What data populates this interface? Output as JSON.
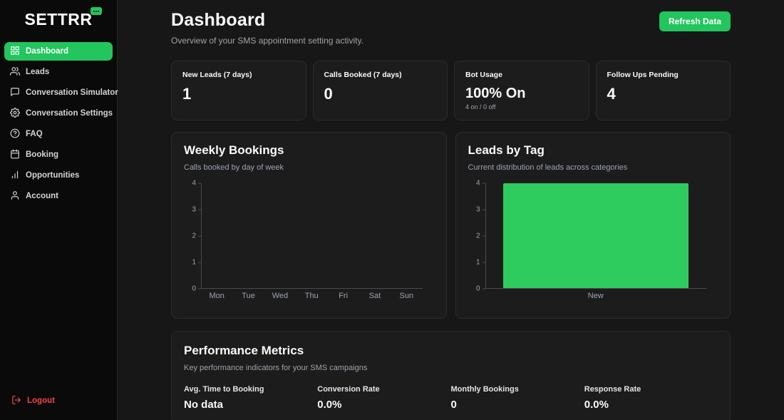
{
  "sidebar": {
    "logo": "SETTRR",
    "items": [
      {
        "label": "Dashboard",
        "icon": "grid-icon",
        "active": true
      },
      {
        "label": "Leads",
        "icon": "users-icon",
        "active": false
      },
      {
        "label": "Conversation Simulator",
        "icon": "chat-icon",
        "active": false
      },
      {
        "label": "Conversation Settings",
        "icon": "gear-icon",
        "active": false
      },
      {
        "label": "FAQ",
        "icon": "help-icon",
        "active": false
      },
      {
        "label": "Booking",
        "icon": "calendar-icon",
        "active": false
      },
      {
        "label": "Opportunities",
        "icon": "bar-chart-icon",
        "active": false
      },
      {
        "label": "Account",
        "icon": "user-icon",
        "active": false
      }
    ],
    "logout_label": "Logout"
  },
  "header": {
    "title": "Dashboard",
    "subtitle": "Overview of your SMS appointment setting activity.",
    "refresh_button": "Refresh Data"
  },
  "stats": [
    {
      "label": "New Leads (7 days)",
      "value": "1",
      "sub": ""
    },
    {
      "label": "Calls Booked (7 days)",
      "value": "0",
      "sub": ""
    },
    {
      "label": "Bot Usage",
      "value": "100% On",
      "sub": "4 on / 0 off"
    },
    {
      "label": "Follow Ups Pending",
      "value": "4",
      "sub": ""
    }
  ],
  "chart_data": [
    {
      "type": "bar",
      "title": "Weekly Bookings",
      "subtitle": "Calls booked by day of week",
      "categories": [
        "Mon",
        "Tue",
        "Wed",
        "Thu",
        "Fri",
        "Sat",
        "Sun"
      ],
      "values": [
        0,
        0,
        0,
        0,
        0,
        0,
        0
      ],
      "ylim": [
        0,
        4
      ],
      "yticks": [
        0,
        1,
        2,
        3,
        4
      ],
      "bar_color": "#2ecc5e",
      "grid": false,
      "legend": "none"
    },
    {
      "type": "bar",
      "title": "Leads by Tag",
      "subtitle": "Current distribution of leads across categories",
      "categories": [
        "New"
      ],
      "values": [
        4
      ],
      "ylim": [
        0,
        4
      ],
      "yticks": [
        0,
        1,
        2,
        3,
        4
      ],
      "bar_color": "#2ecc5e",
      "grid": false,
      "legend": "none"
    }
  ],
  "performance": {
    "title": "Performance Metrics",
    "subtitle": "Key performance indicators for your SMS campaigns",
    "metrics": [
      {
        "label": "Avg. Time to Booking",
        "value": "No data"
      },
      {
        "label": "Conversion Rate",
        "value": "0.0%"
      },
      {
        "label": "Monthly Bookings",
        "value": "0"
      },
      {
        "label": "Response Rate",
        "value": "0.0%"
      }
    ]
  },
  "colors": {
    "accent": "#22c55e",
    "bar_green": "#2ecc5e",
    "danger": "#ef4444",
    "sidebar_bg": "#0a0a0a",
    "main_bg": "#171717",
    "card_bg": "#1c1c1c"
  }
}
